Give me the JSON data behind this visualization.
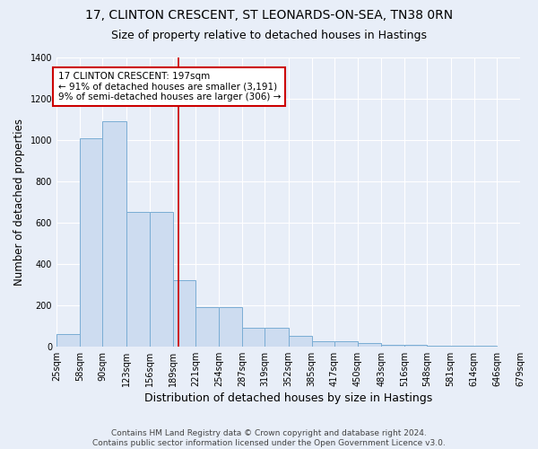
{
  "title1": "17, CLINTON CRESCENT, ST LEONARDS-ON-SEA, TN38 0RN",
  "title2": "Size of property relative to detached houses in Hastings",
  "xlabel": "Distribution of detached houses by size in Hastings",
  "ylabel": "Number of detached properties",
  "bin_edges": [
    25,
    58,
    90,
    123,
    156,
    189,
    221,
    254,
    287,
    319,
    352,
    385,
    417,
    450,
    483,
    516,
    548,
    581,
    614,
    646,
    679
  ],
  "bar_heights": [
    60,
    1010,
    1090,
    650,
    650,
    320,
    190,
    190,
    90,
    90,
    50,
    25,
    25,
    15,
    10,
    10,
    5,
    5,
    3,
    0
  ],
  "bar_color": "#cddcf0",
  "bar_edge_color": "#7aadd4",
  "property_size": 197,
  "vline_color": "#cc0000",
  "annotation_text": "17 CLINTON CRESCENT: 197sqm\n← 91% of detached houses are smaller (3,191)\n9% of semi-detached houses are larger (306) →",
  "annotation_box_color": "#ffffff",
  "annotation_box_edge_color": "#cc0000",
  "ylim": [
    0,
    1400
  ],
  "yticks": [
    0,
    200,
    400,
    600,
    800,
    1000,
    1200,
    1400
  ],
  "bg_color": "#e8eef8",
  "grid_color": "#ffffff",
  "footer_text": "Contains HM Land Registry data © Crown copyright and database right 2024.\nContains public sector information licensed under the Open Government Licence v3.0.",
  "title1_fontsize": 10,
  "title2_fontsize": 9,
  "xlabel_fontsize": 9,
  "ylabel_fontsize": 8.5,
  "tick_fontsize": 7,
  "annotation_fontsize": 7.5,
  "footer_fontsize": 6.5
}
